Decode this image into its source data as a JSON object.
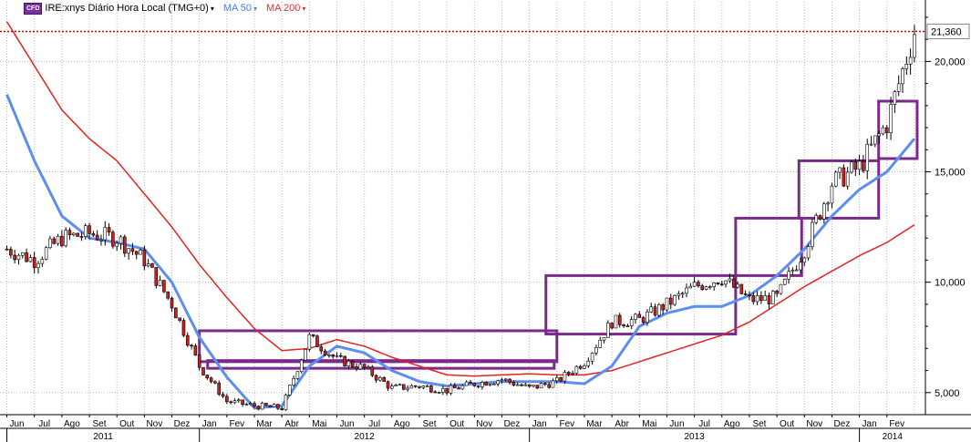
{
  "toolbar": {
    "cfd_badge": "CFD",
    "symbol_label": "IRE:xnys Diário Hora Local (TMG+0)",
    "ma50_label": "MA 50",
    "ma200_label": "MA 200",
    "caret": "▾"
  },
  "colors": {
    "ma50": "#5b8ef0",
    "ma200": "#e82020",
    "bars": "#000000",
    "down_fill": "#cc2020",
    "boxes": "#7a2a8a",
    "last_price_line": "#cc0000"
  },
  "chart_data": {
    "type": "line",
    "title": "",
    "xlabel": "",
    "ylabel": "",
    "ylim": [
      4000,
      22700
    ],
    "yticks": [
      5000,
      10000,
      15000,
      20000
    ],
    "ytick_labels": [
      "5,000",
      "10,000",
      "15,000",
      "20,000"
    ],
    "last_price": 21360,
    "last_price_label": "21,360",
    "month_labels": [
      "Jun",
      "Jul",
      "Ago",
      "Set",
      "Out",
      "Nov",
      "Dez",
      "Jan",
      "Fev",
      "Mar",
      "Abr",
      "Mai",
      "Jun",
      "Jul",
      "Ago",
      "Set",
      "Out",
      "Nov",
      "Dez",
      "Jan",
      "Fev",
      "Mar",
      "Abr",
      "Mai",
      "Jun",
      "Jul",
      "Ago",
      "Set",
      "Out",
      "Nov",
      "Dez",
      "Jan",
      "Fev"
    ],
    "year_labels": [
      "2011",
      "2012",
      "2013",
      "2014"
    ],
    "x": [
      0,
      1,
      2,
      3,
      4,
      5,
      6,
      7,
      8,
      9,
      10,
      11,
      12,
      13,
      14,
      15,
      16,
      17,
      18,
      19,
      20,
      21,
      22,
      23,
      24,
      25,
      26,
      27,
      28,
      29,
      30,
      31,
      32,
      33
    ],
    "series": [
      {
        "key": "price",
        "values": [
          11500,
          11000,
          12000,
          12200,
          12000,
          11000,
          9000,
          6200,
          4600,
          4400,
          4300,
          7500,
          6500,
          6100,
          5200,
          5300,
          5100,
          5400,
          5600,
          5200,
          5500,
          6400,
          8200,
          8300,
          9000,
          9800,
          10200,
          9200,
          9300,
          11500,
          14500,
          15200,
          17200,
          21360
        ]
      },
      {
        "key": "ma50",
        "values": [
          18500,
          15500,
          13000,
          12000,
          11800,
          11500,
          10000,
          7500,
          5700,
          4300,
          4400,
          6200,
          7100,
          6800,
          6000,
          5500,
          5300,
          5400,
          5500,
          5500,
          5500,
          5400,
          6200,
          8000,
          8600,
          8900,
          8900,
          9400,
          10300,
          11500,
          13000,
          14200,
          15000,
          16500
        ]
      },
      {
        "key": "ma200",
        "values": [
          21800,
          19800,
          17800,
          16500,
          15500,
          14000,
          12500,
          10800,
          9300,
          7900,
          6900,
          7000,
          7400,
          7100,
          6600,
          6200,
          5800,
          5750,
          5800,
          5850,
          5800,
          5800,
          6000,
          6400,
          6800,
          7200,
          7600,
          8200,
          9000,
          9800,
          10500,
          11200,
          11800,
          12600
        ]
      }
    ],
    "price_range_boxes": [
      {
        "x": [
          7,
          20
        ],
        "y": [
          6400,
          7800
        ]
      },
      {
        "x": [
          7.3,
          19.9
        ],
        "y": [
          6100,
          6450
        ]
      },
      {
        "x": [
          19.6,
          26.5
        ],
        "y": [
          7650,
          10300
        ]
      },
      {
        "x": [
          26.5,
          28.9
        ],
        "y": [
          10300,
          12900
        ]
      },
      {
        "x": [
          28.8,
          31.7
        ],
        "y": [
          12900,
          15500
        ]
      },
      {
        "x": [
          31.7,
          33.1
        ],
        "y": [
          15600,
          18200
        ]
      }
    ]
  }
}
